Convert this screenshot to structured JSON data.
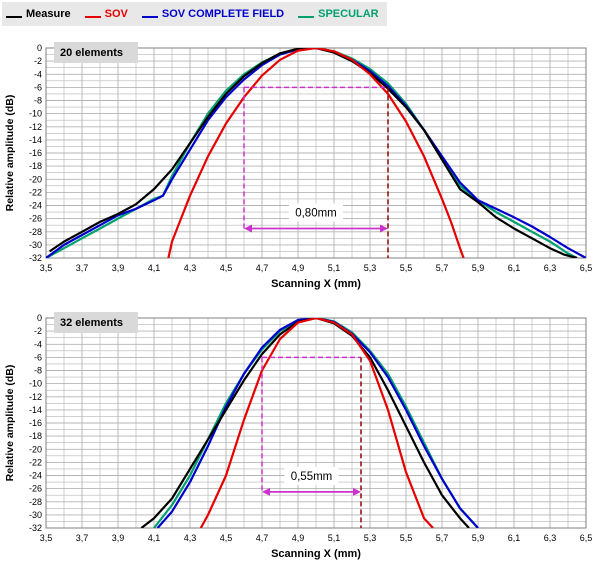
{
  "legend": {
    "items": [
      {
        "label": "Measure",
        "color": "#000000"
      },
      {
        "label": "SOV",
        "color": "#e60000"
      },
      {
        "label": "SOV COMPLETE FIELD",
        "color": "#0000cc"
      },
      {
        "label": "SPECULAR",
        "color": "#00a070"
      }
    ]
  },
  "colors": {
    "annotation": "#cc33cc",
    "annotation_dark": "#990000",
    "grid": "#b4b4b4",
    "tag_bg": "#d9d9d9"
  },
  "chart_data": [
    {
      "type": "line",
      "panel_label": "20 elements",
      "xlabel": "Scanning X (mm)",
      "ylabel": "Relative amplitude (dB)",
      "xlim": [
        3.5,
        6.5
      ],
      "ylim": [
        -32,
        0
      ],
      "xticks": [
        "3,5",
        "3,7",
        "3,9",
        "4,1",
        "4,3",
        "4,5",
        "4,7",
        "4,9",
        "5,1",
        "5,3",
        "5,5",
        "5,7",
        "5,9",
        "6,1",
        "6,3",
        "6,5"
      ],
      "yticks": [
        "0",
        "-2",
        "-4",
        "-6",
        "-8",
        "-10",
        "-12",
        "-14",
        "-16",
        "-18",
        "-20",
        "-22",
        "-24",
        "-26",
        "-28",
        "-30",
        "-32"
      ],
      "grid": true,
      "series": [
        {
          "name": "Measure",
          "color": "#000000",
          "x": [
            3.52,
            3.6,
            3.7,
            3.8,
            3.9,
            4.0,
            4.1,
            4.2,
            4.3,
            4.4,
            4.5,
            4.6,
            4.7,
            4.8,
            4.9,
            5.0,
            5.1,
            5.2,
            5.3,
            5.4,
            5.5,
            5.6,
            5.7,
            5.8,
            5.9,
            6.0,
            6.1,
            6.2,
            6.3,
            6.38,
            6.45
          ],
          "y": [
            -31,
            -29.5,
            -28,
            -26.5,
            -25.3,
            -23.8,
            -21.5,
            -18.5,
            -14.5,
            -10.5,
            -7,
            -4.3,
            -2.3,
            -0.8,
            -0.1,
            0,
            -0.7,
            -2,
            -3.8,
            -6.2,
            -9,
            -12.5,
            -17,
            -21.5,
            -23.5,
            -25.8,
            -27.5,
            -29,
            -30.5,
            -31.5,
            -32
          ]
        },
        {
          "name": "SOV",
          "color": "#e60000",
          "x": [
            4.18,
            4.2,
            4.25,
            4.3,
            4.4,
            4.5,
            4.6,
            4.7,
            4.8,
            4.9,
            5.0,
            5.1,
            5.2,
            5.3,
            5.4,
            5.5,
            5.6,
            5.7,
            5.75,
            5.8,
            5.82
          ],
          "y": [
            -32,
            -29.5,
            -26,
            -22.5,
            -16.5,
            -11.5,
            -7.5,
            -4.2,
            -1.8,
            -0.4,
            0,
            -0.5,
            -1.8,
            -4,
            -7,
            -11.2,
            -16.5,
            -23,
            -26.5,
            -30.5,
            -32
          ]
        },
        {
          "name": "SOV COMPLETE FIELD",
          "color": "#0000cc",
          "x": [
            3.5,
            3.6,
            3.7,
            3.8,
            3.9,
            4.0,
            4.1,
            4.15,
            4.2,
            4.3,
            4.4,
            4.5,
            4.6,
            4.7,
            4.8,
            4.9,
            5.0,
            5.1,
            5.2,
            5.3,
            5.4,
            5.5,
            5.6,
            5.7,
            5.8,
            5.9,
            6.0,
            6.1,
            6.2,
            6.3,
            6.4,
            6.5
          ],
          "y": [
            -32,
            -30,
            -28.5,
            -27,
            -25.5,
            -24.5,
            -23.2,
            -22.5,
            -20,
            -15.5,
            -11,
            -7.5,
            -4.8,
            -2.6,
            -1,
            -0.2,
            0,
            -0.6,
            -1.8,
            -3.5,
            -5.8,
            -8.8,
            -12.5,
            -16.5,
            -20.5,
            -23.2,
            -24.5,
            -25.8,
            -27.2,
            -28.8,
            -30.5,
            -32
          ]
        },
        {
          "name": "SPECULAR",
          "color": "#00a070",
          "x": [
            3.5,
            3.6,
            3.7,
            3.8,
            3.9,
            4.0,
            4.1,
            4.15,
            4.2,
            4.3,
            4.4,
            4.5,
            4.6,
            4.7,
            4.8,
            4.9,
            5.0,
            5.1,
            5.2,
            5.3,
            5.4,
            5.5,
            5.6,
            5.7,
            5.8,
            5.9,
            6.0,
            6.1,
            6.2,
            6.3,
            6.4,
            6.45
          ],
          "y": [
            -32,
            -30.5,
            -29,
            -27.5,
            -26,
            -24.5,
            -23,
            -22.5,
            -19.5,
            -14.5,
            -10,
            -6.5,
            -4,
            -2.2,
            -0.9,
            -0.2,
            0,
            -0.5,
            -1.6,
            -3.2,
            -5.4,
            -8.5,
            -12.5,
            -17,
            -21,
            -23.2,
            -25,
            -26.5,
            -28,
            -29.5,
            -31.3,
            -32
          ]
        }
      ],
      "annotation": {
        "x1": 4.6,
        "x2": 5.4,
        "level": -6,
        "arrow_y": -27.5,
        "label": "0,80mm"
      }
    },
    {
      "type": "line",
      "panel_label": "32 elements",
      "xlabel": "Scanning X (mm)",
      "ylabel": "Relative amplitude (dB)",
      "xlim": [
        3.5,
        6.5
      ],
      "ylim": [
        -32,
        0
      ],
      "xticks": [
        "3,5",
        "3,7",
        "3,9",
        "4,1",
        "4,3",
        "4,5",
        "4,7",
        "4,9",
        "5,1",
        "5,3",
        "5,5",
        "5,7",
        "5,9",
        "6,1",
        "6,3",
        "6,5"
      ],
      "yticks": [
        "0",
        "-2",
        "-4",
        "-6",
        "-8",
        "-10",
        "-12",
        "-14",
        "-16",
        "-18",
        "-20",
        "-22",
        "-24",
        "-26",
        "-28",
        "-30",
        "-32"
      ],
      "grid": true,
      "series": [
        {
          "name": "Measure",
          "color": "#000000",
          "x": [
            4.03,
            4.1,
            4.2,
            4.3,
            4.4,
            4.5,
            4.6,
            4.7,
            4.8,
            4.9,
            5.0,
            5.1,
            5.2,
            5.3,
            5.4,
            5.5,
            5.6,
            5.7,
            5.8,
            5.85
          ],
          "y": [
            -32,
            -30.5,
            -27.5,
            -23,
            -18.5,
            -14,
            -9.5,
            -5.5,
            -2.5,
            -0.6,
            0,
            -0.8,
            -2.7,
            -6,
            -11,
            -16.5,
            -22,
            -27,
            -30.5,
            -32
          ]
        },
        {
          "name": "SOV",
          "color": "#e60000",
          "x": [
            4.36,
            4.4,
            4.5,
            4.6,
            4.7,
            4.8,
            4.9,
            5.0,
            5.1,
            5.2,
            5.3,
            5.4,
            5.5,
            5.6,
            5.65
          ],
          "y": [
            -32,
            -30,
            -24,
            -15.5,
            -8,
            -3.2,
            -0.7,
            0,
            -0.7,
            -2.5,
            -6.5,
            -14,
            -23.5,
            -30.5,
            -32
          ]
        },
        {
          "name": "SOV COMPLETE FIELD",
          "color": "#0000cc",
          "x": [
            4.12,
            4.2,
            4.3,
            4.4,
            4.5,
            4.6,
            4.7,
            4.8,
            4.9,
            5.0,
            5.1,
            5.2,
            5.3,
            5.4,
            5.5,
            5.6,
            5.7,
            5.8,
            5.9
          ],
          "y": [
            -32,
            -29.5,
            -25,
            -19.5,
            -13.5,
            -8.5,
            -4.5,
            -1.8,
            -0.3,
            0,
            -0.6,
            -2.4,
            -5.2,
            -9,
            -14,
            -19.5,
            -24.5,
            -29,
            -32
          ]
        },
        {
          "name": "SPECULAR",
          "color": "#00a070",
          "x": [
            4.1,
            4.2,
            4.3,
            4.4,
            4.5,
            4.6,
            4.7,
            4.8,
            4.9,
            5.0,
            5.1,
            5.2,
            5.3,
            5.4,
            5.5,
            5.6,
            5.7,
            5.8,
            5.9
          ],
          "y": [
            -32,
            -28.5,
            -24,
            -18.5,
            -13,
            -8.5,
            -4.8,
            -2,
            -0.4,
            0,
            -0.5,
            -2.2,
            -5,
            -8.5,
            -13.5,
            -19,
            -24.5,
            -29,
            -32
          ]
        }
      ],
      "annotation": {
        "x1": 4.7,
        "x2": 5.25,
        "level": -6,
        "arrow_y": -26.5,
        "label": "0,55mm"
      }
    }
  ]
}
